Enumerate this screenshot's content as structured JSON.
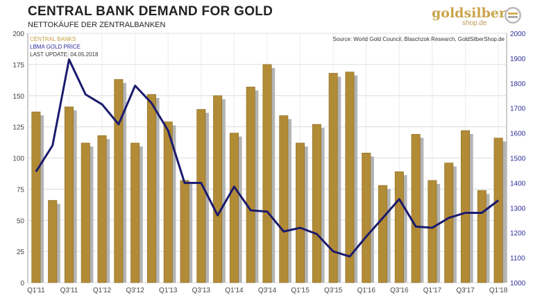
{
  "header": {
    "title": "CENTRAL BANK DEMAND FOR GOLD",
    "subtitle": "NETTOKÄUFE DER ZENTRALBANKEN"
  },
  "logo": {
    "name": "goldsilber",
    "sub": "shop.de"
  },
  "colors": {
    "bar": "#b28b36",
    "shadow": "#b4b4b4",
    "line": "#1a1a6e",
    "grid": "#dcdcdc",
    "left_axis_label": "#c9a040",
    "right_axis_label": "#2b2b9a"
  },
  "chart_data": {
    "type": "bar",
    "categories": [
      "Q1'11",
      "Q2'11",
      "Q3'11",
      "Q4'11",
      "Q1'12",
      "Q2'12",
      "Q3'12",
      "Q4'12",
      "Q1'13",
      "Q2'13",
      "Q3'13",
      "Q4'13",
      "Q1'14",
      "Q2'14",
      "Q3'14",
      "Q4'14",
      "Q1'15",
      "Q2'15",
      "Q3'15",
      "Q4'15",
      "Q1'16",
      "Q2'16",
      "Q3'16",
      "Q4'16",
      "Q1'17",
      "Q2'17",
      "Q3'17",
      "Q4'17",
      "Q1'18"
    ],
    "x_tick_labels": [
      "Q1'11",
      "",
      "Q3'11",
      "",
      "Q1'12",
      "",
      "Q3'12",
      "",
      "Q1'13",
      "",
      "Q3'13",
      "",
      "Q1'14",
      "",
      "Q3'14",
      "",
      "Q1'15",
      "",
      "Q3'15",
      "",
      "Q1'16",
      "",
      "Q3'16",
      "",
      "Q1'17",
      "",
      "Q3'17",
      "",
      "Q1'18"
    ],
    "series": [
      {
        "name": "CENTRAL BANKS",
        "axis": "left",
        "values": [
          137,
          66,
          141,
          112,
          118,
          163,
          112,
          151,
          129,
          82,
          139,
          150,
          120,
          157,
          175,
          134,
          112,
          127,
          168,
          169,
          104,
          78,
          89,
          119,
          82,
          96,
          122,
          74,
          116
        ]
      },
      {
        "name": "LBMA GOLD PRICE",
        "axis": "right",
        "type": "line",
        "values": [
          1445,
          1550,
          1895,
          1755,
          1715,
          1635,
          1790,
          1720,
          1610,
          1400,
          1400,
          1270,
          1385,
          1290,
          1285,
          1205,
          1220,
          1195,
          1125,
          1105,
          1185,
          1260,
          1335,
          1225,
          1220,
          1260,
          1280,
          1280,
          1330
        ]
      }
    ],
    "y_left": {
      "ylim": [
        0,
        200
      ],
      "ticks": [
        "0",
        "25",
        "50",
        "75",
        "100",
        "125",
        "150",
        "175",
        "200"
      ]
    },
    "y_right": {
      "ylim": [
        1000,
        2000
      ],
      "ticks": [
        "1000",
        "1100",
        "1200",
        "1300",
        "1400",
        "1500",
        "1600",
        "1700",
        "1800",
        "1900",
        "2000"
      ]
    },
    "legend": [
      {
        "label": "CENTRAL BANKS",
        "color": "#c9a040"
      },
      {
        "label": "LBMA GOLD PRICE",
        "color": "#2b2b9a"
      },
      {
        "label": "LAST UPDATE: 04.05.2018",
        "color": "#333333"
      }
    ],
    "legend_position": "top-left",
    "source": "Source: World Gold Council, Blaschzok Research, GoldSilberShop.de",
    "grid": true
  }
}
